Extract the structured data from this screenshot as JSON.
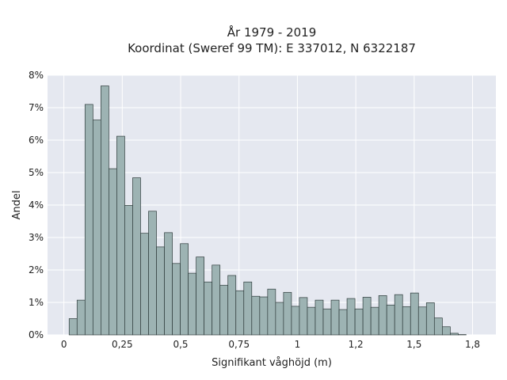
{
  "chart_data": {
    "type": "bar",
    "title": "År 1979 - 2019",
    "subtitle": "Koordinat (Sweref 99 TM): E 337012, N 6322187",
    "xlabel": "Signifikant våghöjd (m)",
    "ylabel": "Andel",
    "xlim": [
      -0.07,
      1.85
    ],
    "ylim": [
      0,
      8
    ],
    "x_ticks": [
      {
        "value": 0,
        "label": "0"
      },
      {
        "value": 0.25,
        "label": "0,25"
      },
      {
        "value": 0.5,
        "label": "0,5"
      },
      {
        "value": 0.75,
        "label": "0,75"
      },
      {
        "value": 1,
        "label": "1"
      },
      {
        "value": 1.25,
        "label": "1,2"
      },
      {
        "value": 1.5,
        "label": "1,5"
      },
      {
        "value": 1.75,
        "label": "1,8"
      }
    ],
    "y_ticks": [
      {
        "value": 0,
        "label": "0%"
      },
      {
        "value": 1,
        "label": "1%"
      },
      {
        "value": 2,
        "label": "2%"
      },
      {
        "value": 3,
        "label": "3%"
      },
      {
        "value": 4,
        "label": "4%"
      },
      {
        "value": 5,
        "label": "5%"
      },
      {
        "value": 6,
        "label": "6%"
      },
      {
        "value": 7,
        "label": "7%"
      },
      {
        "value": 8,
        "label": "8%"
      }
    ],
    "bin_start": 0.0225,
    "bin_width": 0.034,
    "values": [
      0.5,
      1.07,
      7.1,
      6.62,
      7.67,
      5.12,
      6.12,
      3.99,
      4.84,
      3.13,
      3.81,
      2.71,
      3.15,
      2.2,
      2.81,
      1.9,
      2.4,
      1.63,
      2.15,
      1.53,
      1.83,
      1.36,
      1.63,
      1.19,
      1.17,
      1.41,
      1.0,
      1.31,
      0.88,
      1.15,
      0.85,
      1.07,
      0.8,
      1.07,
      0.78,
      1.12,
      0.8,
      1.16,
      0.85,
      1.21,
      0.92,
      1.24,
      0.87,
      1.29,
      0.86,
      0.99,
      0.52,
      0.25,
      0.05,
      0.01
    ],
    "grid": true,
    "colors": {
      "bar_fill": "#9db3b3",
      "bar_stroke": "#2e3b3b",
      "plot_background": "#e5e8f0",
      "grid": "#ffffff"
    }
  }
}
